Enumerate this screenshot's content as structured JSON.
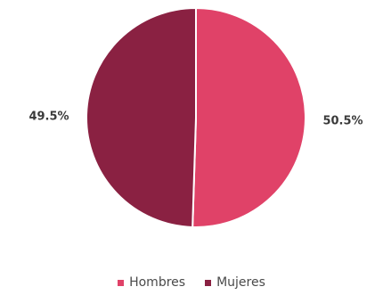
{
  "chart_data": {
    "type": "pie",
    "categories": [
      "Hombres",
      "Mujeres"
    ],
    "values": [
      50.5,
      49.5
    ],
    "labels": [
      "50.5%",
      "49.5%"
    ],
    "colors": [
      "#e04268",
      "#8a2142"
    ],
    "legend_position": "bottom"
  }
}
